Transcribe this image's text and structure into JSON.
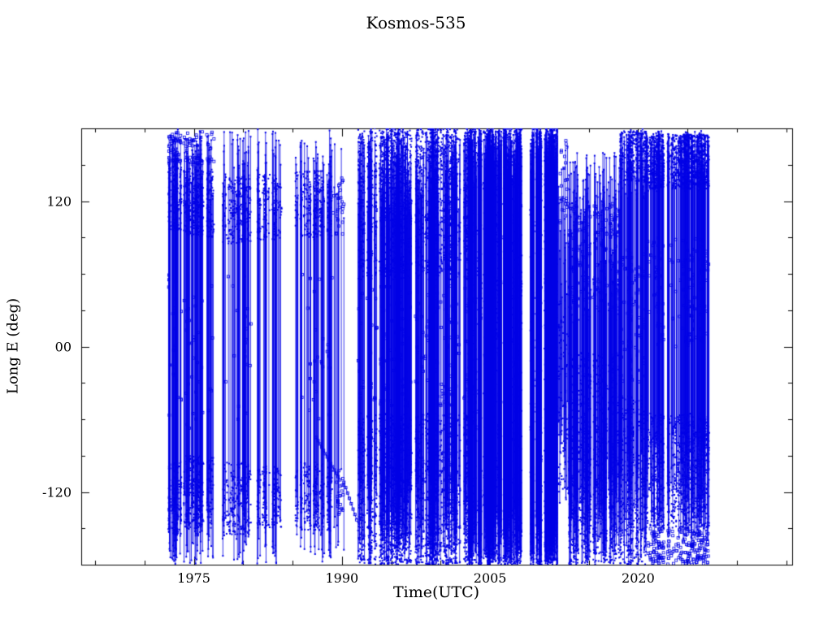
{
  "page": {
    "background": "#ffffff"
  },
  "chart_data": {
    "type": "scatter",
    "title": "Kosmos-535",
    "xlabel": "Time(UTC)",
    "ylabel": "Long E (deg)",
    "xlim": [
      1963.6,
      2035.6
    ],
    "ylim": [
      -180,
      180
    ],
    "xticks": [
      {
        "value": 1975,
        "label": "1975"
      },
      {
        "value": 1990,
        "label": "1990"
      },
      {
        "value": 2005,
        "label": "2005"
      },
      {
        "value": 2020,
        "label": "2020"
      }
    ],
    "yticks": [
      {
        "value": 120,
        "label": "120"
      },
      {
        "value": 0,
        "label": "00"
      },
      {
        "value": -120,
        "label": "-120"
      }
    ],
    "xminor_step": 5,
    "yminor_step": 30,
    "grid": false,
    "legend": null,
    "axis_color": "#000000",
    "data_color": "#0000e6",
    "marker": "open-square",
    "series_description": "Sub-satellite longitude (deg E) of Kosmos-535 versus time; longitude wrap-around produces dense vertical traces between an upper band near +90..+180 deg and a lower band near -90..-180 deg, with near-solid coverage 2003-2012 and dense blocks after 2013",
    "time_coverage": "approx. 1972 - 2027",
    "epochs": [
      {
        "t0": 1972.2,
        "t1": 1974.0,
        "lines_per_year": 30,
        "line_top": [
          110,
          180
        ],
        "line_bot": [
          -180,
          -110
        ],
        "bands": [
          {
            "y0": 95,
            "y1": 150,
            "per_year": 130
          },
          {
            "y0": -155,
            "y1": -95,
            "per_year": 110
          },
          {
            "y0": 150,
            "y1": 178,
            "per_year": 28
          },
          {
            "y0": -60,
            "y1": 60,
            "per_year": 12
          }
        ]
      },
      {
        "t0": 1974.0,
        "t1": 1977.3,
        "lines_per_year": 26,
        "line_top": [
          110,
          180
        ],
        "line_bot": [
          -180,
          -110
        ],
        "bands": [
          {
            "y0": 90,
            "y1": 146,
            "per_year": 115
          },
          {
            "y0": -150,
            "y1": -90,
            "per_year": 95
          },
          {
            "y0": 148,
            "y1": 178,
            "per_year": 18
          },
          {
            "y0": -70,
            "y1": 70,
            "per_year": 10
          }
        ]
      },
      {
        "t0": 1977.8,
        "t1": 1980.8,
        "lines_per_year": 20,
        "line_top": [
          100,
          180
        ],
        "line_bot": [
          -180,
          -105
        ],
        "bands": [
          {
            "y0": 85,
            "y1": 140,
            "per_year": 85
          },
          {
            "y0": -155,
            "y1": -95,
            "per_year": 75
          },
          {
            "y0": -60,
            "y1": 60,
            "per_year": 7
          }
        ]
      },
      {
        "t0": 1981.3,
        "t1": 1983.9,
        "lines_per_year": 18,
        "line_top": [
          105,
          180
        ],
        "line_bot": [
          -180,
          -105
        ],
        "bands": [
          {
            "y0": 88,
            "y1": 142,
            "per_year": 75
          },
          {
            "y0": -150,
            "y1": -98,
            "per_year": 65
          }
        ]
      },
      {
        "t0": 1985.3,
        "t1": 1989.0,
        "lines_per_year": 20,
        "line_top": [
          105,
          180
        ],
        "line_bot": [
          -180,
          -105
        ],
        "bands": [
          {
            "y0": 88,
            "y1": 145,
            "per_year": 80
          },
          {
            "y0": -152,
            "y1": -95,
            "per_year": 70
          },
          {
            "y0": -60,
            "y1": 60,
            "per_year": 7
          }
        ]
      },
      {
        "t0": 1989.0,
        "t1": 1990.2,
        "lines_per_year": 9,
        "line_top": [
          100,
          170
        ],
        "line_bot": [
          -170,
          -100
        ],
        "bands": [
          {
            "y0": 90,
            "y1": 140,
            "per_year": 22
          },
          {
            "y0": -140,
            "y1": -100,
            "per_year": 18
          }
        ]
      },
      {
        "t0": 1991.6,
        "t1": 2002.8,
        "lines_per_year": 45,
        "line_top": [
          100,
          180
        ],
        "line_bot": [
          -180,
          -100
        ],
        "bands": [
          {
            "y0": 55,
            "y1": 180,
            "per_year": 255
          },
          {
            "y0": -180,
            "y1": -55,
            "per_year": 255
          },
          {
            "y0": -50,
            "y1": 50,
            "per_year": 22
          }
        ]
      },
      {
        "t0": 2002.8,
        "t1": 2011.8,
        "lines_per_year": 120,
        "line_top": [
          130,
          180
        ],
        "line_bot": [
          -180,
          -130
        ],
        "bands": [
          {
            "y0": -180,
            "y1": 180,
            "per_year": 520
          }
        ]
      },
      {
        "t0": 2011.8,
        "t1": 2013.0,
        "lines_per_year": 22,
        "line_top": [
          40,
          170
        ],
        "line_bot": [
          -130,
          -40
        ],
        "bands": [
          {
            "y0": -120,
            "y1": 40,
            "per_year": 85
          },
          {
            "y0": 100,
            "y1": 170,
            "per_year": 22
          }
        ]
      },
      {
        "t0": 2013.0,
        "t1": 2018.2,
        "lines_per_year": 55,
        "line_top": [
          20,
          160
        ],
        "line_bot": [
          -180,
          -90
        ],
        "bands": [
          {
            "y0": -135,
            "y1": -5,
            "per_year": 225
          },
          {
            "y0": -180,
            "y1": -135,
            "per_year": 55
          },
          {
            "y0": 30,
            "y1": 120,
            "per_year": 32
          }
        ]
      },
      {
        "t0": 2018.2,
        "t1": 2020.8,
        "lines_per_year": 42,
        "line_top": [
          120,
          180
        ],
        "line_bot": [
          -180,
          -60
        ],
        "bands": [
          {
            "y0": 135,
            "y1": 178,
            "per_year": 150
          },
          {
            "y0": -180,
            "y1": -40,
            "per_year": 195
          },
          {
            "y0": -30,
            "y1": 80,
            "per_year": 38
          }
        ]
      },
      {
        "t0": 2020.8,
        "t1": 2027.4,
        "lines_per_year": 38,
        "line_top": [
          128,
          178
        ],
        "line_bot": [
          -160,
          -60
        ],
        "bands": [
          {
            "y0": 130,
            "y1": 175,
            "per_year": 225
          },
          {
            "y0": -150,
            "y1": -55,
            "per_year": 175
          },
          {
            "y0": -180,
            "y1": -150,
            "per_year": 35
          },
          {
            "y0": 0,
            "y1": 90,
            "per_year": 22
          }
        ]
      }
    ],
    "drift_segments": [
      {
        "t0": 1987.4,
        "y0": -75,
        "t1": 1989.8,
        "y1": -110
      },
      {
        "t0": 1990.2,
        "y0": -112,
        "t1": 1991.5,
        "y1": -143
      }
    ]
  }
}
